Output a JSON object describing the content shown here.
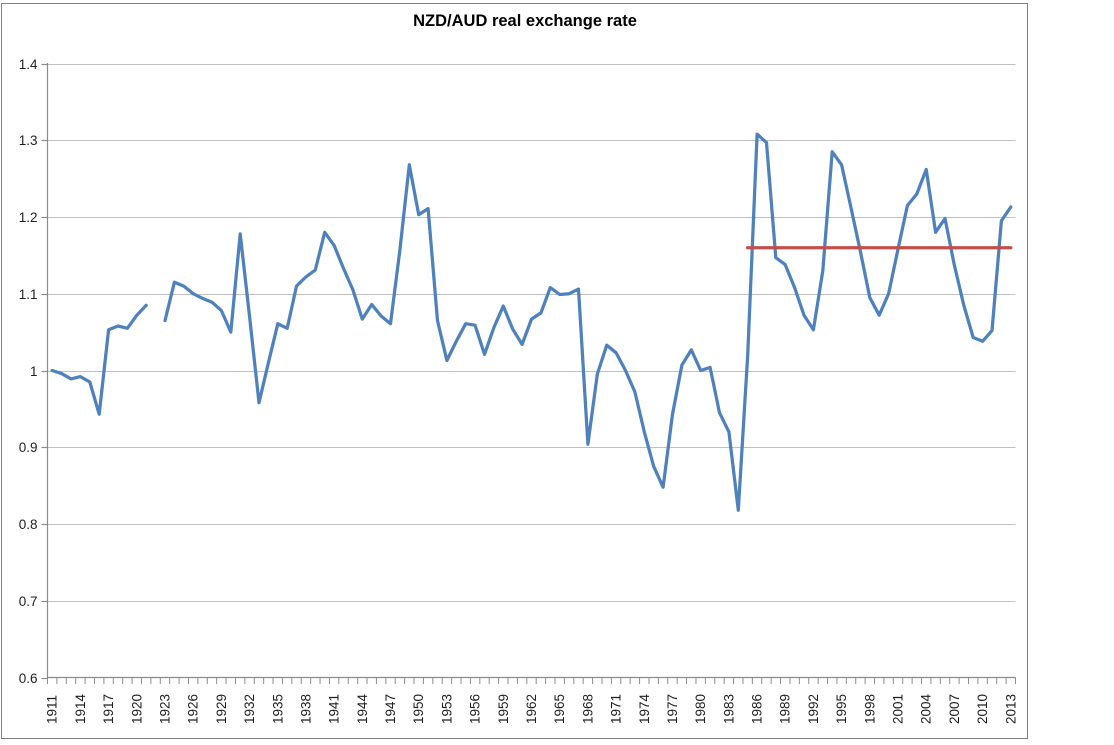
{
  "chart_data": {
    "type": "line",
    "title": "NZD/AUD real exchange rate",
    "xlabel": "",
    "ylabel": "",
    "ylim": [
      0.6,
      1.4
    ],
    "ytick_step": 0.1,
    "y_tick_labels": [
      "1.4",
      "1.3",
      "1.2",
      "1.1",
      "1",
      "0.9",
      "0.8",
      "0.7",
      "0.6"
    ],
    "x_range": [
      1911,
      2013
    ],
    "x_tick_label_years": [
      1911,
      1914,
      1917,
      1920,
      1923,
      1926,
      1929,
      1932,
      1935,
      1938,
      1941,
      1944,
      1947,
      1950,
      1953,
      1956,
      1959,
      1962,
      1965,
      1968,
      1971,
      1974,
      1977,
      1980,
      1983,
      1986,
      1989,
      1992,
      1995,
      1998,
      2001,
      2004,
      2007,
      2010,
      2013
    ],
    "x_label_interval": 3,
    "x_minor_tick_every_year": true,
    "grid": true,
    "legend": false,
    "missing_years": [
      1922
    ],
    "series": [
      {
        "name": "NZD/AUD real exchange rate",
        "color": "#4F81BD",
        "points": [
          [
            1911,
            1.0
          ],
          [
            1912,
            0.996
          ],
          [
            1913,
            0.989
          ],
          [
            1914,
            0.992
          ],
          [
            1915,
            0.985
          ],
          [
            1916,
            0.943
          ],
          [
            1917,
            1.053
          ],
          [
            1918,
            1.058
          ],
          [
            1919,
            1.055
          ],
          [
            1920,
            1.072
          ],
          [
            1921,
            1.085
          ],
          [
            1922,
            null
          ],
          [
            1923,
            1.065
          ],
          [
            1924,
            1.115
          ],
          [
            1925,
            1.11
          ],
          [
            1926,
            1.1
          ],
          [
            1927,
            1.094
          ],
          [
            1928,
            1.089
          ],
          [
            1929,
            1.078
          ],
          [
            1930,
            1.05
          ],
          [
            1931,
            1.178
          ],
          [
            1932,
            1.07
          ],
          [
            1933,
            0.958
          ],
          [
            1934,
            1.01
          ],
          [
            1935,
            1.061
          ],
          [
            1936,
            1.055
          ],
          [
            1937,
            1.11
          ],
          [
            1938,
            1.122
          ],
          [
            1939,
            1.131
          ],
          [
            1940,
            1.18
          ],
          [
            1941,
            1.163
          ],
          [
            1942,
            1.133
          ],
          [
            1943,
            1.105
          ],
          [
            1944,
            1.067
          ],
          [
            1945,
            1.086
          ],
          [
            1946,
            1.071
          ],
          [
            1947,
            1.061
          ],
          [
            1948,
            1.157
          ],
          [
            1949,
            1.268
          ],
          [
            1950,
            1.203
          ],
          [
            1951,
            1.211
          ],
          [
            1952,
            1.065
          ],
          [
            1953,
            1.013
          ],
          [
            1954,
            1.038
          ],
          [
            1955,
            1.061
          ],
          [
            1956,
            1.059
          ],
          [
            1957,
            1.021
          ],
          [
            1958,
            1.056
          ],
          [
            1959,
            1.084
          ],
          [
            1960,
            1.054
          ],
          [
            1961,
            1.034
          ],
          [
            1962,
            1.067
          ],
          [
            1963,
            1.075
          ],
          [
            1964,
            1.108
          ],
          [
            1965,
            1.099
          ],
          [
            1966,
            1.1
          ],
          [
            1967,
            1.106
          ],
          [
            1968,
            0.904
          ],
          [
            1969,
            0.995
          ],
          [
            1970,
            1.033
          ],
          [
            1971,
            1.023
          ],
          [
            1972,
            1.0
          ],
          [
            1973,
            0.972
          ],
          [
            1974,
            0.92
          ],
          [
            1975,
            0.875
          ],
          [
            1976,
            0.848
          ],
          [
            1977,
            0.943
          ],
          [
            1978,
            1.007
          ],
          [
            1979,
            1.027
          ],
          [
            1980,
            1.0
          ],
          [
            1981,
            1.004
          ],
          [
            1982,
            0.945
          ],
          [
            1983,
            0.92
          ],
          [
            1984,
            0.818
          ],
          [
            1985,
            1.02
          ],
          [
            1986,
            1.308
          ],
          [
            1987,
            1.297
          ],
          [
            1988,
            1.147
          ],
          [
            1989,
            1.138
          ],
          [
            1990,
            1.108
          ],
          [
            1991,
            1.072
          ],
          [
            1992,
            1.053
          ],
          [
            1993,
            1.13
          ],
          [
            1994,
            1.285
          ],
          [
            1995,
            1.268
          ],
          [
            1996,
            1.212
          ],
          [
            1997,
            1.155
          ],
          [
            1998,
            1.095
          ],
          [
            1999,
            1.072
          ],
          [
            2000,
            1.1
          ],
          [
            2001,
            1.158
          ],
          [
            2002,
            1.215
          ],
          [
            2003,
            1.23
          ],
          [
            2004,
            1.262
          ],
          [
            2005,
            1.18
          ],
          [
            2006,
            1.198
          ],
          [
            2007,
            1.137
          ],
          [
            2008,
            1.085
          ],
          [
            2009,
            1.043
          ],
          [
            2010,
            1.038
          ],
          [
            2011,
            1.052
          ],
          [
            2012,
            1.195
          ],
          [
            2013,
            1.213
          ]
        ]
      }
    ],
    "reference_line": {
      "value": 1.16,
      "start_year": 1985,
      "end_year": 2013,
      "color": "#C0504D"
    },
    "colors": {
      "series_blue": "#4F81BD",
      "reference_red": "#C0504D",
      "gridline": "#C0C0C0",
      "axis": "#8C8C8C",
      "tick": "#8C8C8C",
      "text": "#1F1F1F",
      "border": "#808080",
      "background": "#FFFFFF"
    }
  }
}
